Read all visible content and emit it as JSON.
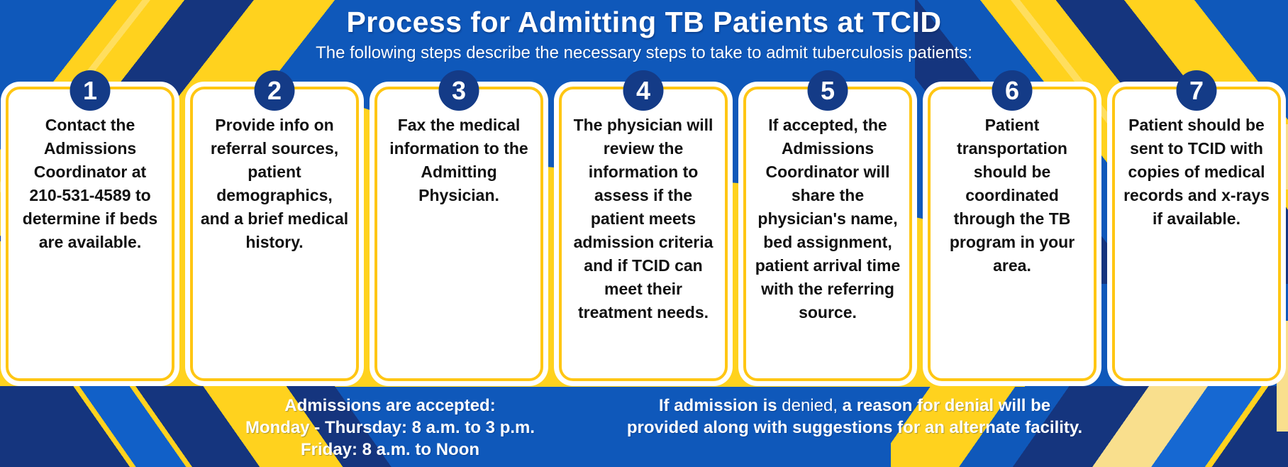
{
  "header": {
    "title": "Process for Admitting TB Patients at TCID",
    "subtitle": "The following steps describe the necessary steps to take to admit tuberculosis patients:"
  },
  "steps": [
    {
      "number": "1",
      "text": "Contact the Admissions Coordinator at 210-531-4589 to determine if beds are available."
    },
    {
      "number": "2",
      "text": "Provide info on referral sources, patient demographics, and a brief medical history."
    },
    {
      "number": "3",
      "text": "Fax the medical information to the Admitting Physician."
    },
    {
      "number": "4",
      "text": "The physician will review the information to assess if the patient meets admission criteria and if TCID can meet their treatment needs."
    },
    {
      "number": "5",
      "text": "If accepted, the Admissions Coordinator will share the physician's name, bed assignment, patient arrival time with the referring source."
    },
    {
      "number": "6",
      "text": "Patient transportation should be coordinated through the TB program in your area."
    },
    {
      "number": "7",
      "text": "Patient should be sent to TCID with copies of medical records and x-rays if available."
    }
  ],
  "footer": {
    "admissions_schedule": {
      "line1": "Admissions are accepted:",
      "line2": "Monday - Thursday: 8 a.m. to 3 p.m.",
      "line3": "Friday: 8 a.m. to Noon"
    },
    "denial_note": {
      "bold_prefix": "If admission is ",
      "regular": "denied,",
      "bold_suffix": " a reason for denial will be provided along with suggestions for an alternate facility."
    }
  },
  "colors": {
    "background_blue": "#0F58BA",
    "stripe_navy": "#15357E",
    "stripe_yellow": "#FFD21E",
    "stripe_light_yellow": "#F9DF8D",
    "card_border_yellow": "#FFC613",
    "badge_navy": "#143B87",
    "text_black": "#111111",
    "text_white": "#FFFFFF"
  }
}
